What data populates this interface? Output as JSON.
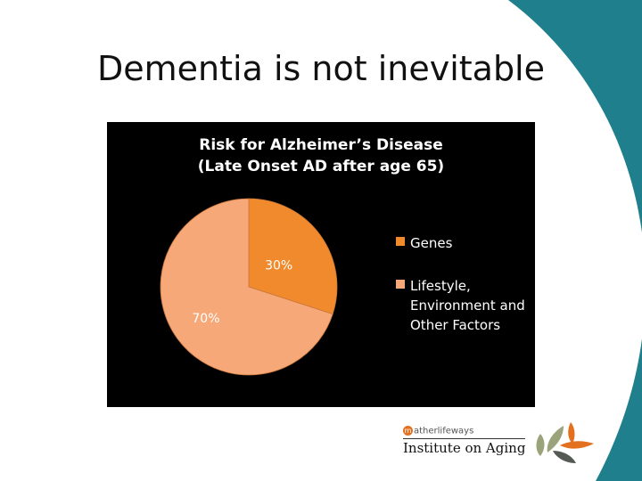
{
  "slide": {
    "title": "Dementia is not inevitable"
  },
  "colors": {
    "teal": "#1f7f8c",
    "genes": "#f08a2c",
    "lifestyle": "#f6a878",
    "chart_bg": "#000000"
  },
  "chart_data": {
    "type": "pie",
    "title_lines": [
      "Risk for Alzheimer’s Disease",
      "(Late Onset AD after age 65)"
    ],
    "slices": [
      {
        "label": "Genes",
        "value": 30,
        "data_label": "30%",
        "color": "#f08a2c"
      },
      {
        "label_lines": [
          "Lifestyle,",
          "Environment and",
          "Other Factors"
        ],
        "value": 70,
        "data_label": "70%",
        "color": "#f6a878"
      }
    ],
    "legend_position": "right"
  },
  "logo": {
    "brand_small": "atherlifeways",
    "brand_mark": "m",
    "name": "Institute on Aging",
    "icon": "leaf-cluster-icon"
  }
}
